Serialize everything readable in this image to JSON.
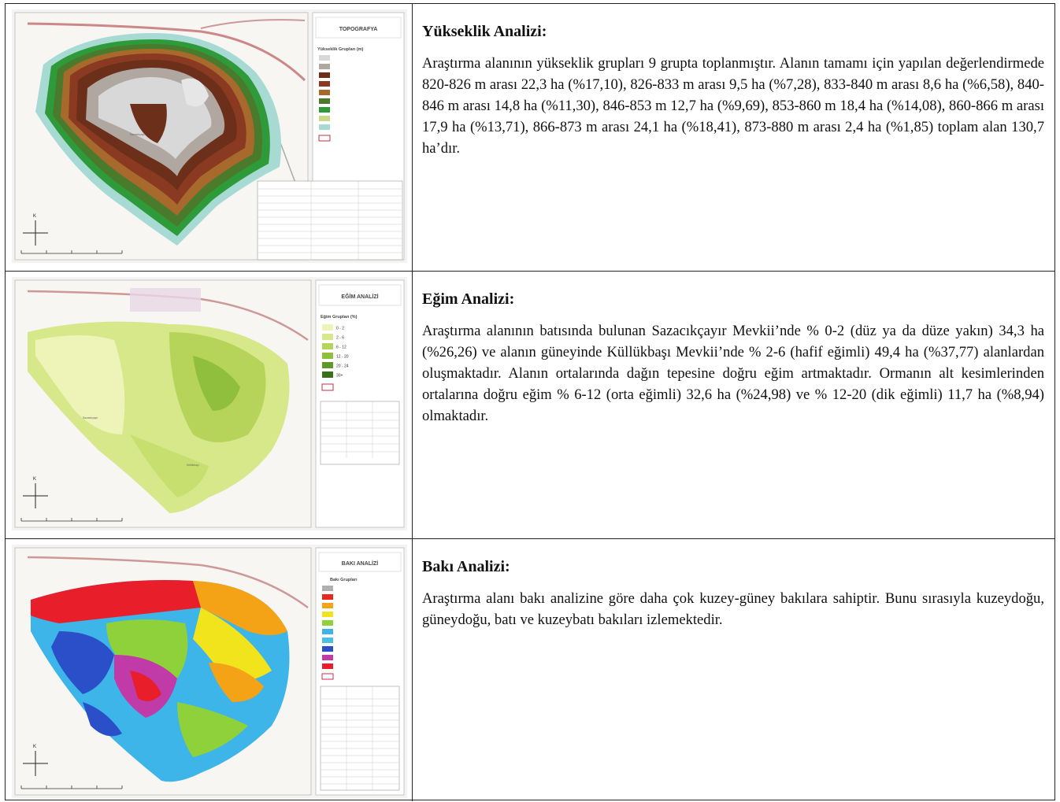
{
  "sections": [
    {
      "title": "Yükseklik Analizi:",
      "body": "Araştırma alanının yükseklik grupları 9 grupta toplanmıştır. Alanın tamamı için yapılan değerlendirmede 820-826 m arası 22,3 ha (%17,10), 826-833 m arası 9,5 ha (%7,28), 833-840 m arası 8,6 ha (%6,58), 840-846 m arası 14,8 ha (%11,30), 846-853 m 12,7 ha (%9,69), 853-860 m 18,4 ha (%14,08), 860-866 m arası 17,9 ha (%13,71), 866-873 m arası 24,1 ha (%18,41), 873-880 m arası 2,4 ha (%1,85) toplam alan 130,7 ha’dır.",
      "map": {
        "title": "TOPOGRAFYA",
        "legend_title": "Yükseklik Grupları (m)",
        "legend_colors": [
          "#d8d8d8",
          "#b0a8a0",
          "#6b2f1a",
          "#8b3a22",
          "#a86a2c",
          "#4a7a2c",
          "#2e9a3a",
          "#c9d98a",
          "#a8dad4"
        ]
      }
    },
    {
      "title": "Eğim Analizi:",
      "body": "Araştırma alanının batısında bulunan Sazacıkçayır Mevkii’nde % 0-2 (düz ya da düze yakın) 34,3 ha (%26,26) ve alanın güneyinde Küllükbaşı Mevkii’nde % 2-6 (hafif eğimli) 49,4 ha (%37,77) alanlardan oluşmaktadır. Alanın ortalarında dağın tepesine doğru eğim artmaktadır. Ormanın alt kesimlerinden ortalarına doğru eğim % 6-12 (orta eğimli) 32,6 ha (%24,98) ve % 12-20 (dik eğimli) 11,7 ha (%8,94) olmaktadır.",
      "map": {
        "title": "EĞİM ANALİZİ",
        "legend_title": "Eğim Grupları (%)",
        "legend_items": [
          "0 - 2",
          "2 - 6",
          "6 - 12",
          "12 - 20",
          "20 - 24",
          "30+"
        ],
        "legend_colors": [
          "#eef3b8",
          "#d6e88a",
          "#b6d45a",
          "#8fbf3c",
          "#5e9a2a",
          "#3d6e1c"
        ]
      }
    },
    {
      "title": "Bakı Analizi:",
      "body": "Araştırma alanı bakı analizine göre daha çok kuzey-güney bakılara sahiptir. Bunu sırasıyla kuzeydoğu, güneydoğu, batı ve kuzeybatı bakıları izlemektedir.",
      "map": {
        "title": "BAKI ANALİZİ",
        "legend_title": "Bakı Grupları",
        "legend_colors": [
          "#b0b0b0",
          "#e8271f",
          "#f5a316",
          "#f2e41c",
          "#8fd13a",
          "#3db5e8",
          "#49c0e0",
          "#2a4fc9",
          "#c03aa8",
          "#e81f2a"
        ]
      }
    }
  ],
  "compass_letter": "K"
}
